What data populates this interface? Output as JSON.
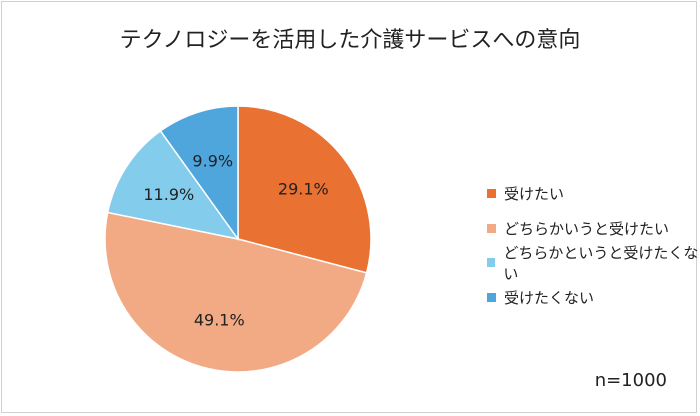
{
  "chart_data": {
    "type": "pie",
    "title": "テクノロジーを活用した介護サービスへの意向",
    "categories": [
      "受けたい",
      "どちらかいうと受けたい",
      "どちらかというと受けたくない",
      "受けたくない"
    ],
    "values": [
      29.1,
      49.1,
      11.9,
      9.9
    ],
    "data_labels": [
      "29.1%",
      "49.1%",
      "11.9%",
      "9.9%"
    ],
    "colors": [
      "#E97132",
      "#F2AA84",
      "#83CCEB",
      "#4EA6DC"
    ],
    "legend_position": "right",
    "start_angle": "top, clockwise",
    "annotation": "n=1000"
  }
}
